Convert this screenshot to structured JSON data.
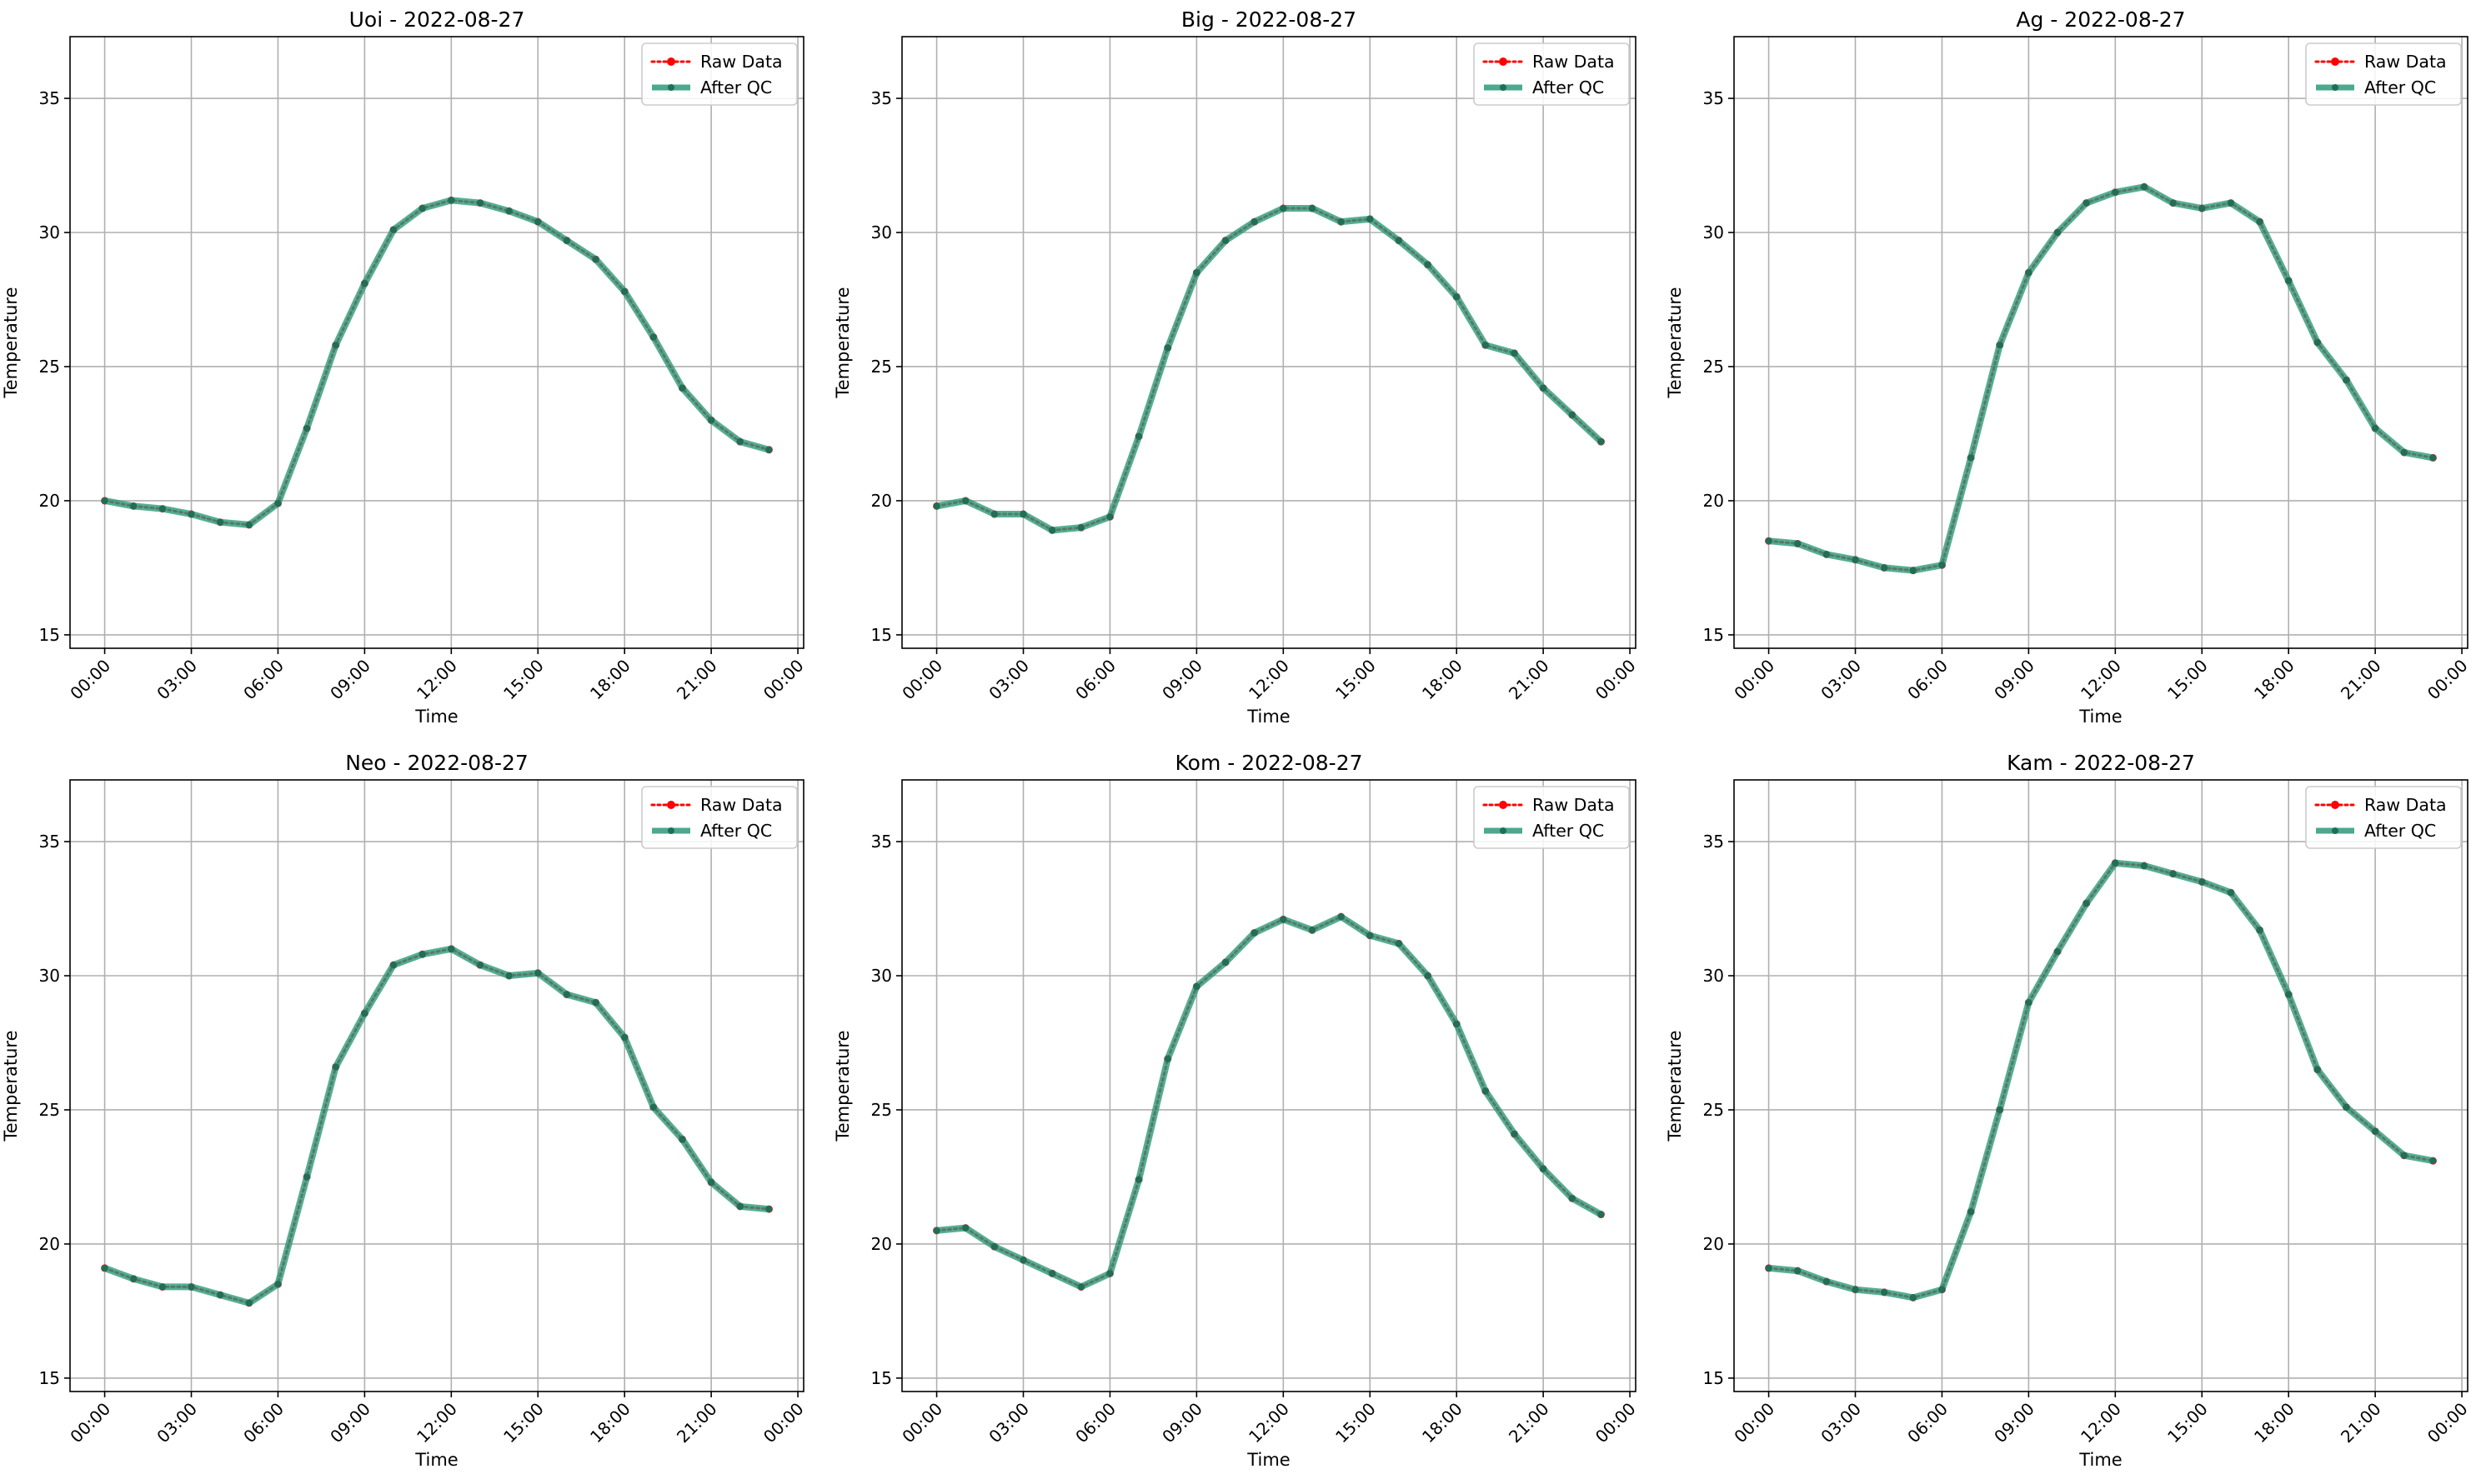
{
  "figure": {
    "panels": [
      {
        "title": "Uoi - 2022-08-27"
      },
      {
        "title": "Big - 2022-08-27"
      },
      {
        "title": "Ag - 2022-08-27"
      },
      {
        "title": "Neo - 2022-08-27"
      },
      {
        "title": "Kom - 2022-08-27"
      },
      {
        "title": "Kam - 2022-08-27"
      }
    ]
  },
  "chart_data": [
    {
      "type": "line",
      "title": "Uoi - 2022-08-27",
      "xlabel": "Time",
      "ylabel": "Temperature",
      "x_ticks": [
        "00:00",
        "03:00",
        "06:00",
        "09:00",
        "12:00",
        "15:00",
        "18:00",
        "21:00",
        "00:00"
      ],
      "y_ticks": [
        15,
        20,
        25,
        30,
        35
      ],
      "xlim": [
        "2022-08-26 22:48",
        "2022-08-28 00:12"
      ],
      "ylim": [
        14.5,
        37.3
      ],
      "grid": true,
      "legend": "top-right",
      "x": [
        "00:00",
        "01:00",
        "02:00",
        "03:00",
        "04:00",
        "05:00",
        "06:00",
        "07:00",
        "08:00",
        "09:00",
        "10:00",
        "11:00",
        "12:00",
        "13:00",
        "14:00",
        "15:00",
        "16:00",
        "17:00",
        "18:00",
        "19:00",
        "20:00",
        "21:00",
        "22:00",
        "23:00"
      ],
      "series": [
        {
          "name": "Raw Data",
          "color": "#ff0000",
          "values": [
            20.0,
            19.8,
            19.7,
            19.5,
            19.2,
            19.1,
            19.9,
            22.7,
            25.8,
            28.1,
            30.1,
            30.9,
            31.2,
            31.1,
            30.8,
            30.4,
            29.7,
            29.0,
            27.8,
            26.1,
            24.2,
            23.0,
            22.2,
            21.9
          ]
        },
        {
          "name": "After QC",
          "color": "#2a9a7a",
          "values": [
            20.0,
            19.8,
            19.7,
            19.5,
            19.2,
            19.1,
            19.9,
            22.7,
            25.8,
            28.1,
            30.1,
            30.9,
            31.2,
            31.1,
            30.8,
            30.4,
            29.7,
            29.0,
            27.8,
            26.1,
            24.2,
            23.0,
            22.2,
            21.9
          ]
        }
      ]
    },
    {
      "type": "line",
      "title": "Big - 2022-08-27",
      "xlabel": "Time",
      "ylabel": "Temperature",
      "x_ticks": [
        "00:00",
        "03:00",
        "06:00",
        "09:00",
        "12:00",
        "15:00",
        "18:00",
        "21:00",
        "00:00"
      ],
      "y_ticks": [
        15,
        20,
        25,
        30,
        35
      ],
      "xlim": [
        "2022-08-26 22:48",
        "2022-08-28 00:12"
      ],
      "ylim": [
        14.5,
        37.3
      ],
      "grid": true,
      "legend": "top-right",
      "x": [
        "00:00",
        "01:00",
        "02:00",
        "03:00",
        "04:00",
        "05:00",
        "06:00",
        "07:00",
        "08:00",
        "09:00",
        "10:00",
        "11:00",
        "12:00",
        "13:00",
        "14:00",
        "15:00",
        "16:00",
        "17:00",
        "18:00",
        "19:00",
        "20:00",
        "21:00",
        "22:00",
        "23:00"
      ],
      "series": [
        {
          "name": "Raw Data",
          "color": "#ff0000",
          "values": [
            19.8,
            20.0,
            19.5,
            19.5,
            18.9,
            19.0,
            19.4,
            22.4,
            25.7,
            28.5,
            29.7,
            30.4,
            30.9,
            30.9,
            30.4,
            30.5,
            29.7,
            28.8,
            27.6,
            25.8,
            25.5,
            24.2,
            23.2,
            22.2
          ]
        },
        {
          "name": "After QC",
          "color": "#2a9a7a",
          "values": [
            19.8,
            20.0,
            19.5,
            19.5,
            18.9,
            19.0,
            19.4,
            22.4,
            25.7,
            28.5,
            29.7,
            30.4,
            30.9,
            30.9,
            30.4,
            30.5,
            29.7,
            28.8,
            27.6,
            25.8,
            25.5,
            24.2,
            23.2,
            22.2
          ]
        }
      ]
    },
    {
      "type": "line",
      "title": "Ag - 2022-08-27",
      "xlabel": "Time",
      "ylabel": "Temperature",
      "x_ticks": [
        "00:00",
        "03:00",
        "06:00",
        "09:00",
        "12:00",
        "15:00",
        "18:00",
        "21:00",
        "00:00"
      ],
      "y_ticks": [
        15,
        20,
        25,
        30,
        35
      ],
      "xlim": [
        "2022-08-26 22:48",
        "2022-08-28 00:12"
      ],
      "ylim": [
        14.5,
        37.3
      ],
      "grid": true,
      "legend": "top-right",
      "x": [
        "00:00",
        "01:00",
        "02:00",
        "03:00",
        "04:00",
        "05:00",
        "06:00",
        "07:00",
        "08:00",
        "09:00",
        "10:00",
        "11:00",
        "12:00",
        "13:00",
        "14:00",
        "15:00",
        "16:00",
        "17:00",
        "18:00",
        "19:00",
        "20:00",
        "21:00",
        "22:00",
        "23:00"
      ],
      "series": [
        {
          "name": "Raw Data",
          "color": "#ff0000",
          "values": [
            18.5,
            18.4,
            18.0,
            17.8,
            17.5,
            17.4,
            17.6,
            21.6,
            25.8,
            28.5,
            30.0,
            31.1,
            31.5,
            31.7,
            31.1,
            30.9,
            31.1,
            30.4,
            28.2,
            25.9,
            24.5,
            22.7,
            21.8,
            21.6
          ]
        },
        {
          "name": "After QC",
          "color": "#2a9a7a",
          "values": [
            18.5,
            18.4,
            18.0,
            17.8,
            17.5,
            17.4,
            17.6,
            21.6,
            25.8,
            28.5,
            30.0,
            31.1,
            31.5,
            31.7,
            31.1,
            30.9,
            31.1,
            30.4,
            28.2,
            25.9,
            24.5,
            22.7,
            21.8,
            21.6
          ]
        }
      ]
    },
    {
      "type": "line",
      "title": "Neo - 2022-08-27",
      "xlabel": "Time",
      "ylabel": "Temperature",
      "x_ticks": [
        "00:00",
        "03:00",
        "06:00",
        "09:00",
        "12:00",
        "15:00",
        "18:00",
        "21:00",
        "00:00"
      ],
      "y_ticks": [
        15,
        20,
        25,
        30,
        35
      ],
      "xlim": [
        "2022-08-26 22:48",
        "2022-08-28 00:12"
      ],
      "ylim": [
        14.5,
        37.3
      ],
      "grid": true,
      "legend": "top-right",
      "x": [
        "00:00",
        "01:00",
        "02:00",
        "03:00",
        "04:00",
        "05:00",
        "06:00",
        "07:00",
        "08:00",
        "09:00",
        "10:00",
        "11:00",
        "12:00",
        "13:00",
        "14:00",
        "15:00",
        "16:00",
        "17:00",
        "18:00",
        "19:00",
        "20:00",
        "21:00",
        "22:00",
        "23:00"
      ],
      "series": [
        {
          "name": "Raw Data",
          "color": "#ff0000",
          "values": [
            19.1,
            18.7,
            18.4,
            18.4,
            18.1,
            17.8,
            18.5,
            22.5,
            26.6,
            28.6,
            30.4,
            30.8,
            31.0,
            30.4,
            30.0,
            30.1,
            29.3,
            29.0,
            27.7,
            25.1,
            23.9,
            22.3,
            21.4,
            21.3
          ]
        },
        {
          "name": "After QC",
          "color": "#2a9a7a",
          "values": [
            19.1,
            18.7,
            18.4,
            18.4,
            18.1,
            17.8,
            18.5,
            22.5,
            26.6,
            28.6,
            30.4,
            30.8,
            31.0,
            30.4,
            30.0,
            30.1,
            29.3,
            29.0,
            27.7,
            25.1,
            23.9,
            22.3,
            21.4,
            21.3
          ]
        }
      ]
    },
    {
      "type": "line",
      "title": "Kom - 2022-08-27",
      "xlabel": "Time",
      "ylabel": "Temperature",
      "x_ticks": [
        "00:00",
        "03:00",
        "06:00",
        "09:00",
        "12:00",
        "15:00",
        "18:00",
        "21:00",
        "00:00"
      ],
      "y_ticks": [
        15,
        20,
        25,
        30,
        35
      ],
      "xlim": [
        "2022-08-26 22:48",
        "2022-08-28 00:12"
      ],
      "ylim": [
        14.5,
        37.3
      ],
      "grid": true,
      "legend": "top-right",
      "x": [
        "00:00",
        "01:00",
        "02:00",
        "03:00",
        "04:00",
        "05:00",
        "06:00",
        "07:00",
        "08:00",
        "09:00",
        "10:00",
        "11:00",
        "12:00",
        "13:00",
        "14:00",
        "15:00",
        "16:00",
        "17:00",
        "18:00",
        "19:00",
        "20:00",
        "21:00",
        "22:00",
        "23:00"
      ],
      "series": [
        {
          "name": "Raw Data",
          "color": "#ff0000",
          "values": [
            20.5,
            20.6,
            19.9,
            19.4,
            18.9,
            18.4,
            18.9,
            22.4,
            26.9,
            29.6,
            30.5,
            31.6,
            32.1,
            31.7,
            32.2,
            31.5,
            31.2,
            30.0,
            28.2,
            25.7,
            24.1,
            22.8,
            21.7,
            21.1
          ]
        },
        {
          "name": "After QC",
          "color": "#2a9a7a",
          "values": [
            20.5,
            20.6,
            19.9,
            19.4,
            18.9,
            18.4,
            18.9,
            22.4,
            26.9,
            29.6,
            30.5,
            31.6,
            32.1,
            31.7,
            32.2,
            31.5,
            31.2,
            30.0,
            28.2,
            25.7,
            24.1,
            22.8,
            21.7,
            21.1
          ]
        }
      ]
    },
    {
      "type": "line",
      "title": "Kam - 2022-08-27",
      "xlabel": "Time",
      "ylabel": "Temperature",
      "x_ticks": [
        "00:00",
        "03:00",
        "06:00",
        "09:00",
        "12:00",
        "15:00",
        "18:00",
        "21:00",
        "00:00"
      ],
      "y_ticks": [
        15,
        20,
        25,
        30,
        35
      ],
      "xlim": [
        "2022-08-26 22:48",
        "2022-08-28 00:12"
      ],
      "ylim": [
        14.5,
        37.3
      ],
      "grid": true,
      "legend": "top-right",
      "x": [
        "00:00",
        "01:00",
        "02:00",
        "03:00",
        "04:00",
        "05:00",
        "06:00",
        "07:00",
        "08:00",
        "09:00",
        "10:00",
        "11:00",
        "12:00",
        "13:00",
        "14:00",
        "15:00",
        "16:00",
        "17:00",
        "18:00",
        "19:00",
        "20:00",
        "21:00",
        "22:00",
        "23:00"
      ],
      "series": [
        {
          "name": "Raw Data",
          "color": "#ff0000",
          "values": [
            19.1,
            19.0,
            18.6,
            18.3,
            18.2,
            18.0,
            18.3,
            21.2,
            25.0,
            29.0,
            30.9,
            32.7,
            34.2,
            34.1,
            33.8,
            33.5,
            33.1,
            31.7,
            29.3,
            26.5,
            25.1,
            24.2,
            23.3,
            23.1
          ]
        },
        {
          "name": "After QC",
          "color": "#2a9a7a",
          "values": [
            19.1,
            19.0,
            18.6,
            18.3,
            18.2,
            18.0,
            18.3,
            21.2,
            25.0,
            29.0,
            30.9,
            32.7,
            34.2,
            34.1,
            33.8,
            33.5,
            33.1,
            31.7,
            29.3,
            26.5,
            25.1,
            24.2,
            23.3,
            23.1
          ]
        }
      ]
    }
  ]
}
